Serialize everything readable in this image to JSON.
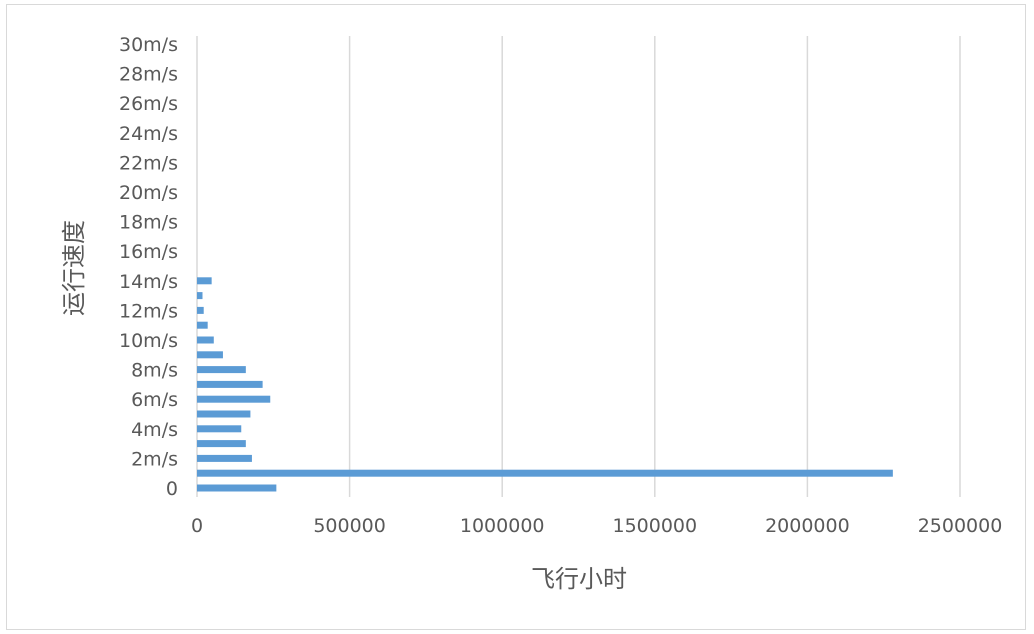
{
  "chart_data": {
    "type": "bar",
    "orientation": "horizontal",
    "xlabel": "飞行小时",
    "ylabel": "运行速度",
    "xlim": [
      0,
      2500000
    ],
    "x_ticks": [
      "0",
      "500000",
      "1000000",
      "1500000",
      "2000000",
      "2500000"
    ],
    "x_tick_values": [
      0,
      500000,
      1000000,
      1500000,
      2000000,
      2500000
    ],
    "y_tick_labels": [
      "0",
      "2m/s",
      "4m/s",
      "6m/s",
      "8m/s",
      "10m/s",
      "12m/s",
      "14m/s",
      "16m/s",
      "18m/s",
      "20m/s",
      "22m/s",
      "24m/s",
      "26m/s",
      "28m/s",
      "30m/s"
    ],
    "categories": [
      0,
      1,
      2,
      3,
      4,
      5,
      6,
      7,
      8,
      9,
      10,
      11,
      12,
      13,
      14,
      15,
      16,
      17,
      18,
      19,
      20,
      21,
      22,
      23,
      24,
      25,
      26,
      27,
      28,
      29,
      30
    ],
    "values": [
      260000,
      2280000,
      180000,
      160000,
      145000,
      175000,
      240000,
      215000,
      160000,
      85000,
      55000,
      35000,
      22000,
      18000,
      48000,
      0,
      0,
      0,
      0,
      0,
      0,
      0,
      0,
      0,
      0,
      0,
      0,
      0,
      0,
      0,
      0
    ],
    "grid": true,
    "bar_color": "#5b9bd5",
    "grid_color": "#d9d9d9"
  }
}
